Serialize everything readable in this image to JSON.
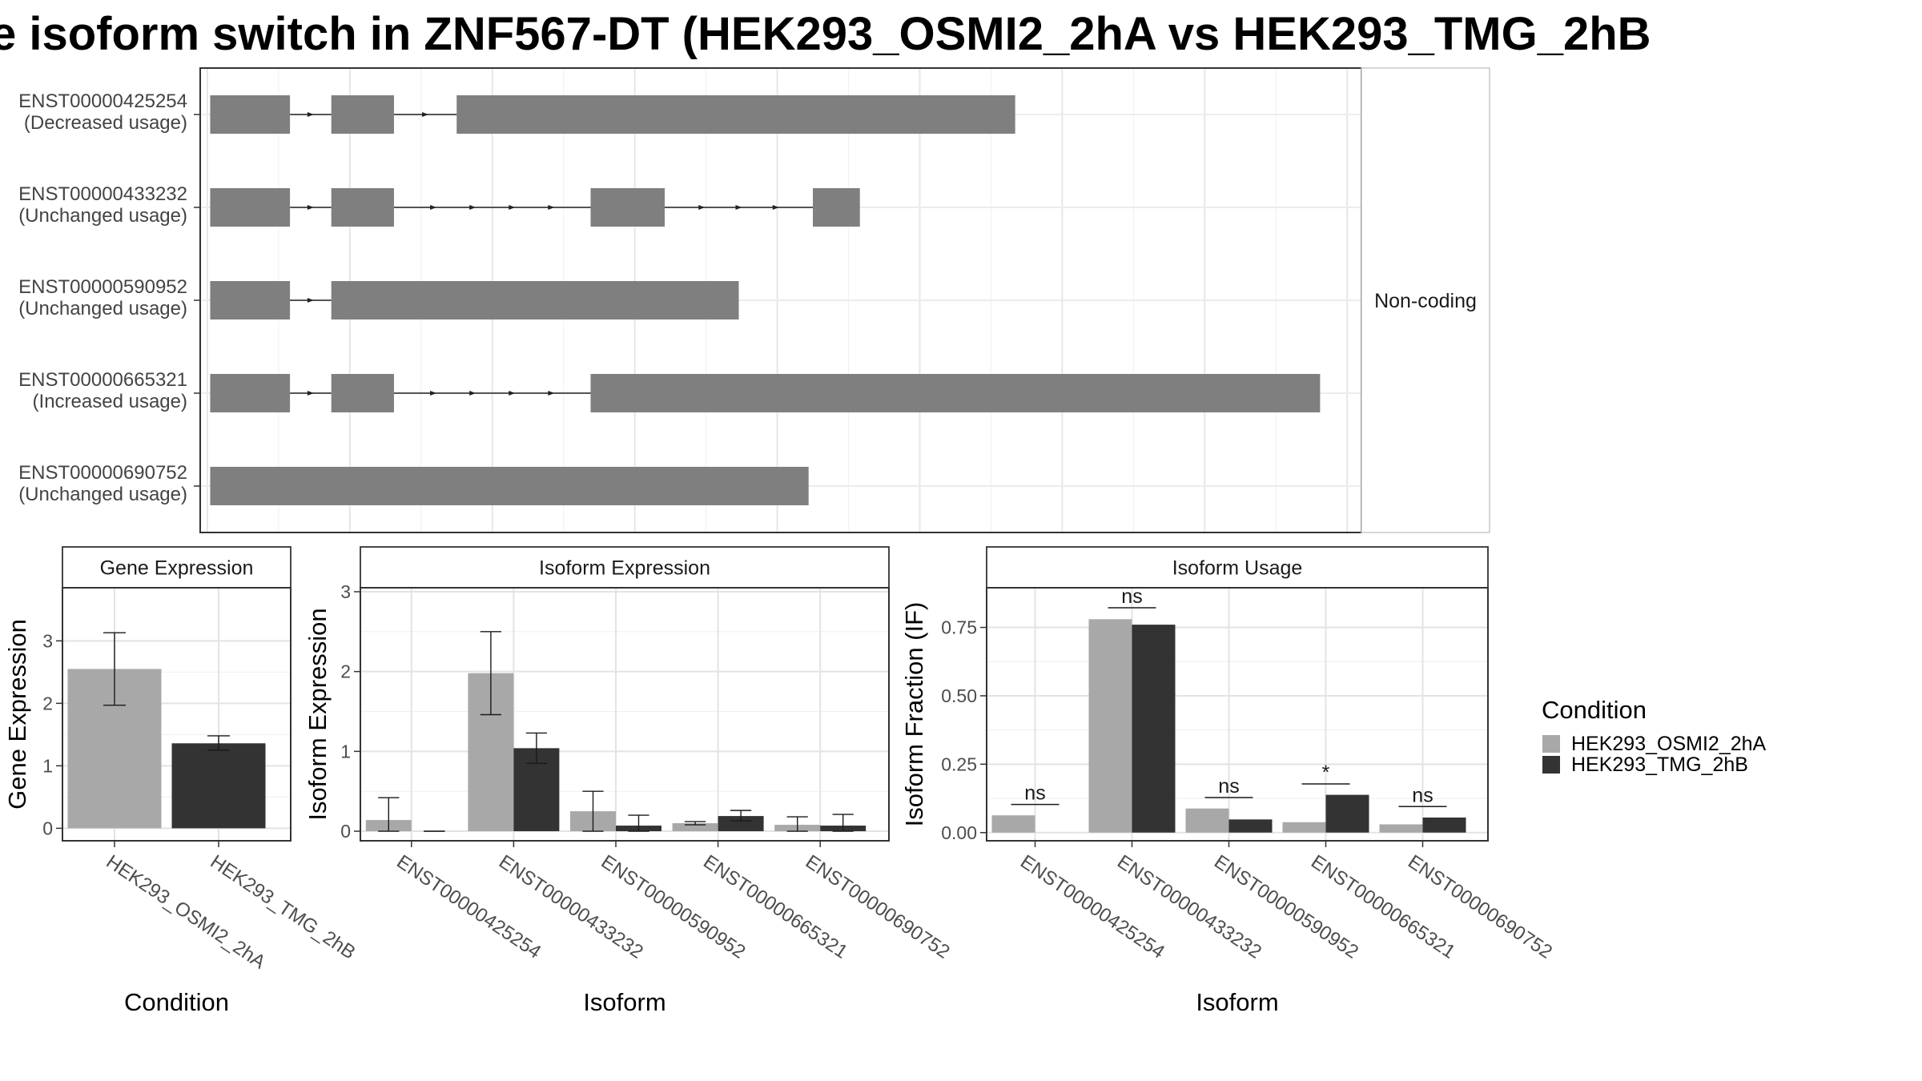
{
  "figure": {
    "title": "e isoform switch in ZNF567-DT (HEK293_OSMI2_2hA vs HEK293_TMG_2hB",
    "colors": {
      "HEK293_OSMI2_2hA": "#a8a8a8",
      "HEK293_TMG_2hB": "#333333",
      "exon": "#7f7f7f"
    }
  },
  "chart_data": [
    {
      "type": "transcript_structure",
      "strip": "Non-coding",
      "transcripts": [
        {
          "id": "ENST00000425254",
          "label": "(Decreased usage)",
          "exons": [
            [
              0.2,
              5.8
            ],
            [
              8.7,
              13.1
            ],
            [
              17.5,
              56.7
            ]
          ]
        },
        {
          "id": "ENST00000433232",
          "label": "(Unchanged usage)",
          "exons": [
            [
              0.2,
              5.8
            ],
            [
              8.7,
              13.1
            ],
            [
              26.9,
              32.1
            ],
            [
              42.5,
              45.8
            ]
          ]
        },
        {
          "id": "ENST00000590952",
          "label": "(Unchanged usage)",
          "exons": [
            [
              0.2,
              5.8
            ],
            [
              8.7,
              37.3
            ]
          ]
        },
        {
          "id": "ENST00000665321",
          "label": "(Increased usage)",
          "exons": [
            [
              0.2,
              5.8
            ],
            [
              8.7,
              13.1
            ],
            [
              26.9,
              78.1
            ]
          ]
        },
        {
          "id": "ENST00000690752",
          "label": "(Unchanged usage)",
          "exons": [
            [
              0.2,
              42.2
            ]
          ]
        }
      ],
      "x_range": [
        -0.5,
        81.0
      ],
      "grid": true
    },
    {
      "type": "bar",
      "strip": "Gene Expression",
      "xlabel": "Condition",
      "ylabel": "Gene Expression",
      "categories": [
        "HEK293_OSMI2_2hA",
        "HEK293_TMG_2hB"
      ],
      "values": [
        2.55,
        1.36
      ],
      "error": [
        [
          1.97,
          3.13
        ],
        [
          1.25,
          1.48
        ]
      ],
      "ylim": [
        -0.2,
        3.85
      ],
      "yticks": [
        "0",
        "1",
        "2",
        "3"
      ],
      "grid": true
    },
    {
      "type": "bar",
      "strip": "Isoform Expression",
      "xlabel": "Isoform",
      "ylabel": "Isoform Expression",
      "categories": [
        "ENST00000425254",
        "ENST00000433232",
        "ENST00000590952",
        "ENST00000665321",
        "ENST00000690752"
      ],
      "series": [
        {
          "name": "HEK293_OSMI2_2hA",
          "values": [
            0.14,
            1.98,
            0.25,
            0.1,
            0.08
          ],
          "error": [
            [
              0.0,
              0.42
            ],
            [
              1.46,
              2.5
            ],
            [
              0.0,
              0.5
            ],
            [
              0.08,
              0.12
            ],
            [
              0.0,
              0.18
            ]
          ]
        },
        {
          "name": "HEK293_TMG_2hB",
          "values": [
            0.0,
            1.04,
            0.07,
            0.19,
            0.07
          ],
          "error": [
            [
              0.0,
              0.0
            ],
            [
              0.85,
              1.23
            ],
            [
              0.0,
              0.2
            ],
            [
              0.13,
              0.26
            ],
            [
              0.0,
              0.21
            ]
          ]
        }
      ],
      "ylim": [
        -0.12,
        3.05
      ],
      "yticks": [
        "0",
        "1",
        "2",
        "3"
      ],
      "grid": true
    },
    {
      "type": "bar",
      "strip": "Isoform Usage",
      "xlabel": "Isoform",
      "ylabel": "Isoform Fraction (IF)",
      "categories": [
        "ENST00000425254",
        "ENST00000433232",
        "ENST00000590952",
        "ENST00000665321",
        "ENST00000690752"
      ],
      "series": [
        {
          "name": "HEK293_OSMI2_2hA",
          "values": [
            0.063,
            0.78,
            0.088,
            0.038,
            0.03
          ]
        },
        {
          "name": "HEK293_TMG_2hB",
          "values": [
            0.0,
            0.76,
            0.048,
            0.138,
            0.055
          ]
        }
      ],
      "annotations": [
        "ns",
        "ns",
        "ns",
        "*",
        "ns"
      ],
      "annotation_y": [
        0.103,
        0.822,
        0.128,
        0.178,
        0.095
      ],
      "ylim": [
        -0.03,
        0.895
      ],
      "yticks": [
        "0.00",
        "0.25",
        "0.50",
        "0.75"
      ],
      "grid": true
    }
  ],
  "legend": {
    "title": "Condition",
    "entries": [
      "HEK293_OSMI2_2hA",
      "HEK293_TMG_2hB"
    ]
  }
}
